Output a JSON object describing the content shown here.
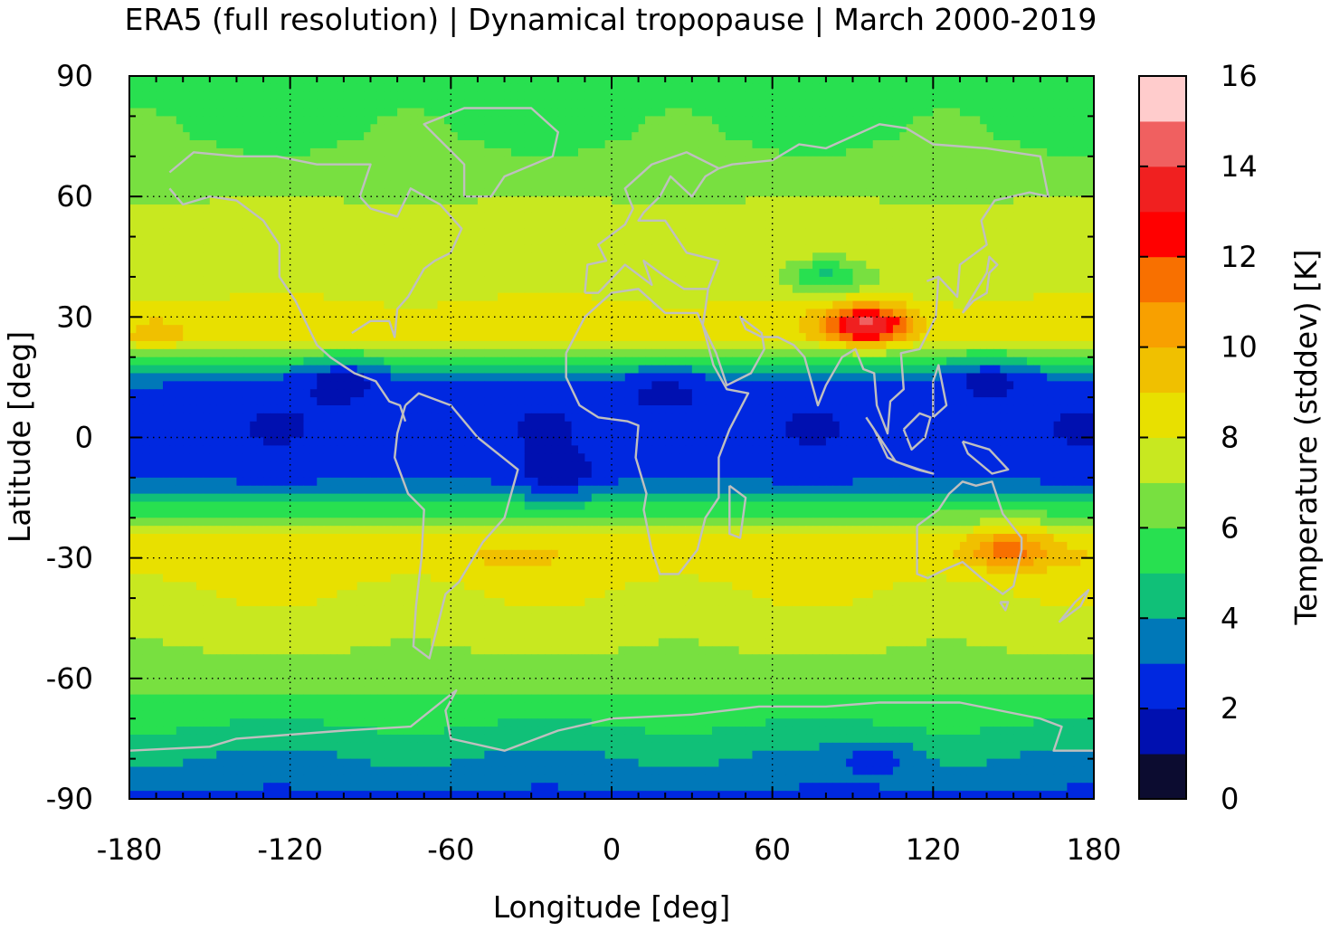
{
  "title": "ERA5 (full resolution) | Dynamical tropopause | March 2000-2019",
  "chart_data": {
    "type": "heatmap",
    "title": "ERA5 (full resolution) | Dynamical tropopause | March 2000-2019",
    "xlabel": "Longitude [deg]",
    "ylabel": "Latitude [deg]",
    "colorbar_label": "Temperature (stddev) [K]",
    "xlim": [
      -180,
      180
    ],
    "ylim": [
      -90,
      90
    ],
    "x_ticks": [
      -180,
      -120,
      -60,
      0,
      60,
      120,
      180
    ],
    "y_ticks": [
      90,
      60,
      30,
      0,
      -30,
      -60,
      -90
    ],
    "x_tick_labels": [
      "-180",
      "-120",
      "-60",
      "0",
      "60",
      "120",
      "180"
    ],
    "y_tick_labels": [
      "90",
      "60",
      "30",
      "0",
      "-30",
      "-60",
      "-90"
    ],
    "colorbar_ticks": [
      16,
      14,
      12,
      10,
      8,
      6,
      4,
      2,
      0
    ],
    "colorbar_tick_labels": [
      "16",
      "14",
      "12",
      "10",
      "8",
      "6",
      "4",
      "2",
      "0"
    ],
    "colorbar_range": [
      0,
      16
    ],
    "grid": true,
    "coastlines_color": "#bfbfbf",
    "levels": [
      0,
      1,
      2,
      3,
      4,
      5,
      6,
      7,
      8,
      9,
      10,
      11,
      12,
      13,
      14,
      15,
      16
    ],
    "colors": [
      "#0c0c30",
      "#0010b0",
      "#0028e0",
      "#0078b8",
      "#10c078",
      "#28e050",
      "#78e040",
      "#c8e820",
      "#e8e000",
      "#f0c000",
      "#f8a000",
      "#f87000",
      "#ff0000",
      "#f02020",
      "#f06060",
      "#ffcccc"
    ],
    "zonal_profile": {
      "lat": [
        90,
        85,
        80,
        75,
        70,
        65,
        60,
        55,
        50,
        45,
        40,
        35,
        30,
        25,
        20,
        15,
        10,
        5,
        0,
        -5,
        -10,
        -15,
        -20,
        -25,
        -30,
        -35,
        -40,
        -45,
        -50,
        -55,
        -60,
        -65,
        -70,
        -75,
        -80,
        -85,
        -90
      ],
      "value": [
        5.4,
        5.6,
        5.8,
        5.9,
        6.2,
        6.6,
        6.9,
        7.4,
        7.7,
        7.6,
        7.2,
        7.9,
        8.6,
        8.3,
        5.8,
        3.2,
        2.4,
        2.2,
        2.2,
        2.4,
        2.8,
        4.3,
        6.4,
        8.5,
        8.9,
        8.2,
        7.9,
        7.6,
        7.2,
        6.9,
        6.3,
        5.9,
        5.2,
        4.6,
        3.9,
        3.6,
        2.6
      ]
    },
    "highlights": [
      {
        "lon": 90,
        "lat": 28,
        "value": 11.5
      },
      {
        "lon": 100,
        "lat": 28,
        "value": 12.0
      },
      {
        "lon": 148,
        "lat": -28,
        "value": 11.5
      },
      {
        "lon": -170,
        "lat": 25,
        "value": 9.5
      },
      {
        "lon": -40,
        "lat": -30,
        "value": 9.2
      },
      {
        "lon": -100,
        "lat": 15,
        "value": 1.5
      },
      {
        "lon": -20,
        "lat": -10,
        "value": 1.5
      },
      {
        "lon": 20,
        "lat": 12,
        "value": 1.5
      },
      {
        "lon": 140,
        "lat": 15,
        "value": 1.6
      },
      {
        "lon": 100,
        "lat": -80,
        "value": 2.5
      },
      {
        "lon": 80,
        "lat": 40,
        "value": 4.5
      }
    ]
  }
}
